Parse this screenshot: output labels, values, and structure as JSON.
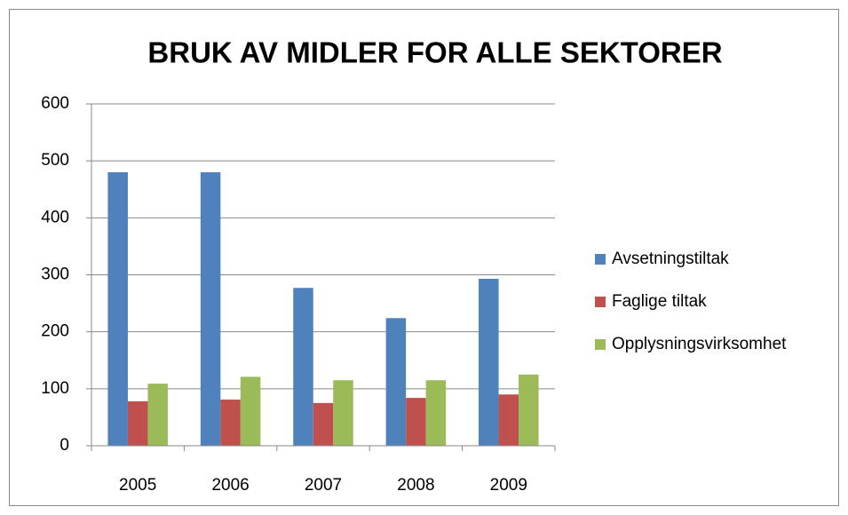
{
  "chart_data": {
    "type": "bar",
    "title": "BRUK AV MIDLER FOR ALLE SEKTORER",
    "categories": [
      "2005",
      "2006",
      "2007",
      "2008",
      "2009"
    ],
    "series": [
      {
        "name": "Avsetningstiltak",
        "color": "#4f81bd",
        "values": [
          480,
          480,
          277,
          224,
          293
        ]
      },
      {
        "name": "Faglige tiltak",
        "color": "#c0504d",
        "values": [
          78,
          81,
          75,
          84,
          90
        ]
      },
      {
        "name": "Opplysningsvirksomhet",
        "color": "#9bbb59",
        "values": [
          109,
          121,
          115,
          115,
          125
        ]
      }
    ],
    "ylim": [
      0,
      600
    ],
    "yticks": [
      0,
      100,
      200,
      300,
      400,
      500,
      600
    ],
    "grid": true,
    "legend": "right"
  }
}
